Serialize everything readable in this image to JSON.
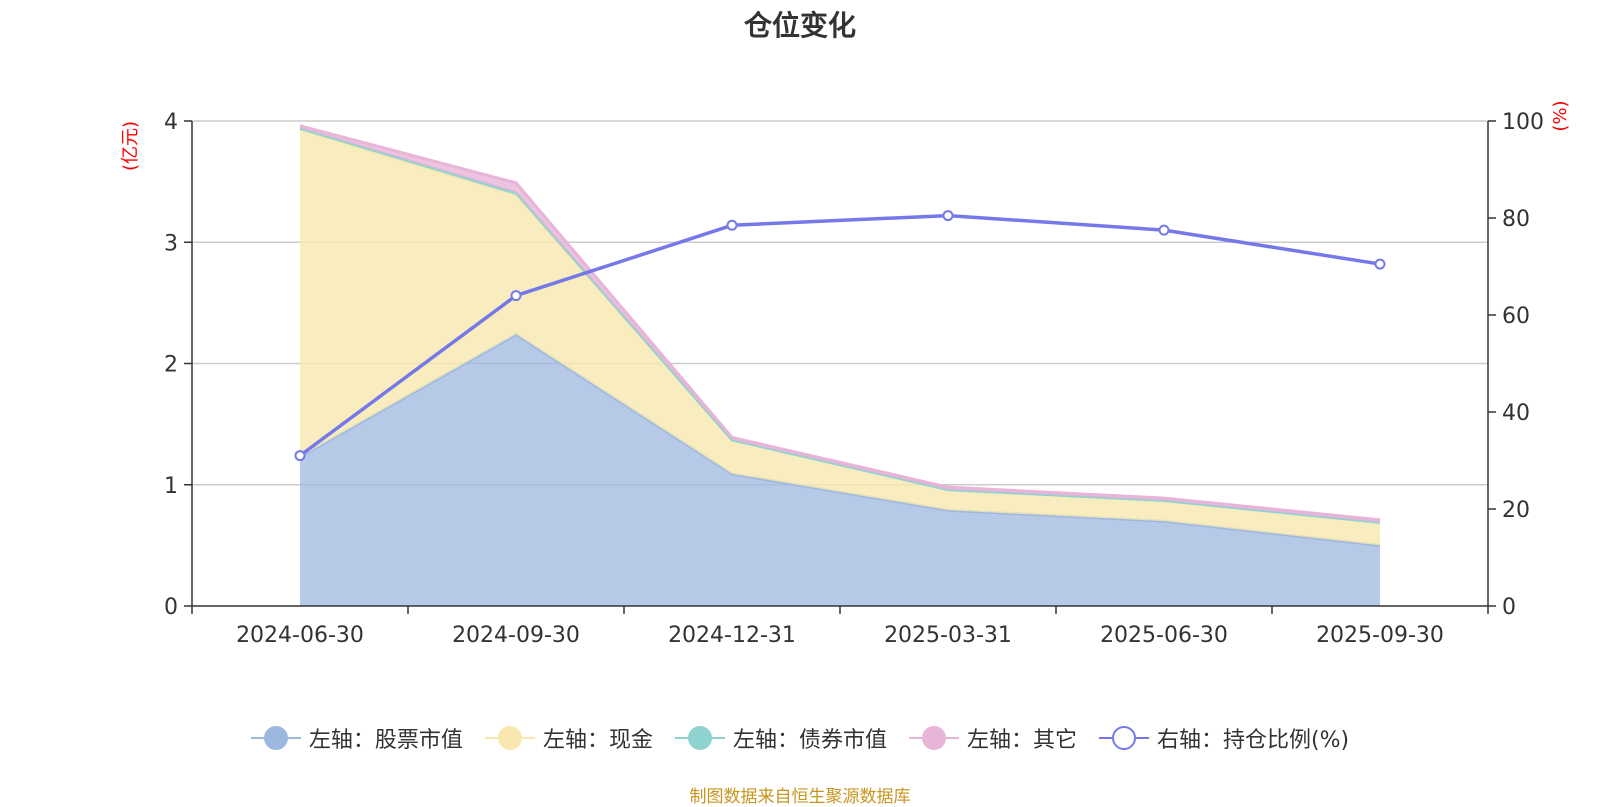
{
  "chart_data": {
    "type": "area",
    "title": "仓位变化",
    "categories": [
      "2024-06-30",
      "2024-09-30",
      "2024-12-31",
      "2025-03-31",
      "2025-06-30",
      "2025-09-30"
    ],
    "stacked": true,
    "left_axis": {
      "unit": "(亿元)",
      "ylim": [
        0,
        4
      ],
      "ticks": [
        "0",
        "1",
        "2",
        "3",
        "4"
      ]
    },
    "right_axis": {
      "unit": "(%)",
      "ylim": [
        0,
        100
      ],
      "ticks": [
        "0",
        "20",
        "40",
        "60",
        "80",
        "100"
      ]
    },
    "series": [
      {
        "name": "左轴：股票市值",
        "axis": "left",
        "type": "area",
        "color": "#9db8e0",
        "values": [
          1.23,
          2.24,
          1.09,
          0.79,
          0.7,
          0.5
        ]
      },
      {
        "name": "左轴：现金",
        "axis": "left",
        "type": "area",
        "color": "#f8e8b0",
        "values": [
          2.7,
          1.15,
          0.28,
          0.17,
          0.17,
          0.19
        ]
      },
      {
        "name": "左轴：债券市值",
        "axis": "left",
        "type": "area",
        "color": "#8fd3d1",
        "values": [
          0.01,
          0.02,
          0.0,
          0.0,
          0.0,
          0.0
        ]
      },
      {
        "name": "左轴：其它",
        "axis": "left",
        "type": "area",
        "color": "#e8b4d8",
        "values": [
          0.02,
          0.08,
          0.02,
          0.02,
          0.02,
          0.02
        ]
      },
      {
        "name": "右轴：持仓比例(%)",
        "axis": "right",
        "type": "line",
        "color": "#7478e8",
        "values": [
          31,
          64,
          78.5,
          80.5,
          77.5,
          70.5
        ]
      }
    ],
    "grid": true,
    "legend_position": "bottom"
  },
  "footer": {
    "source": "制图数据来自恒生聚源数据库"
  }
}
